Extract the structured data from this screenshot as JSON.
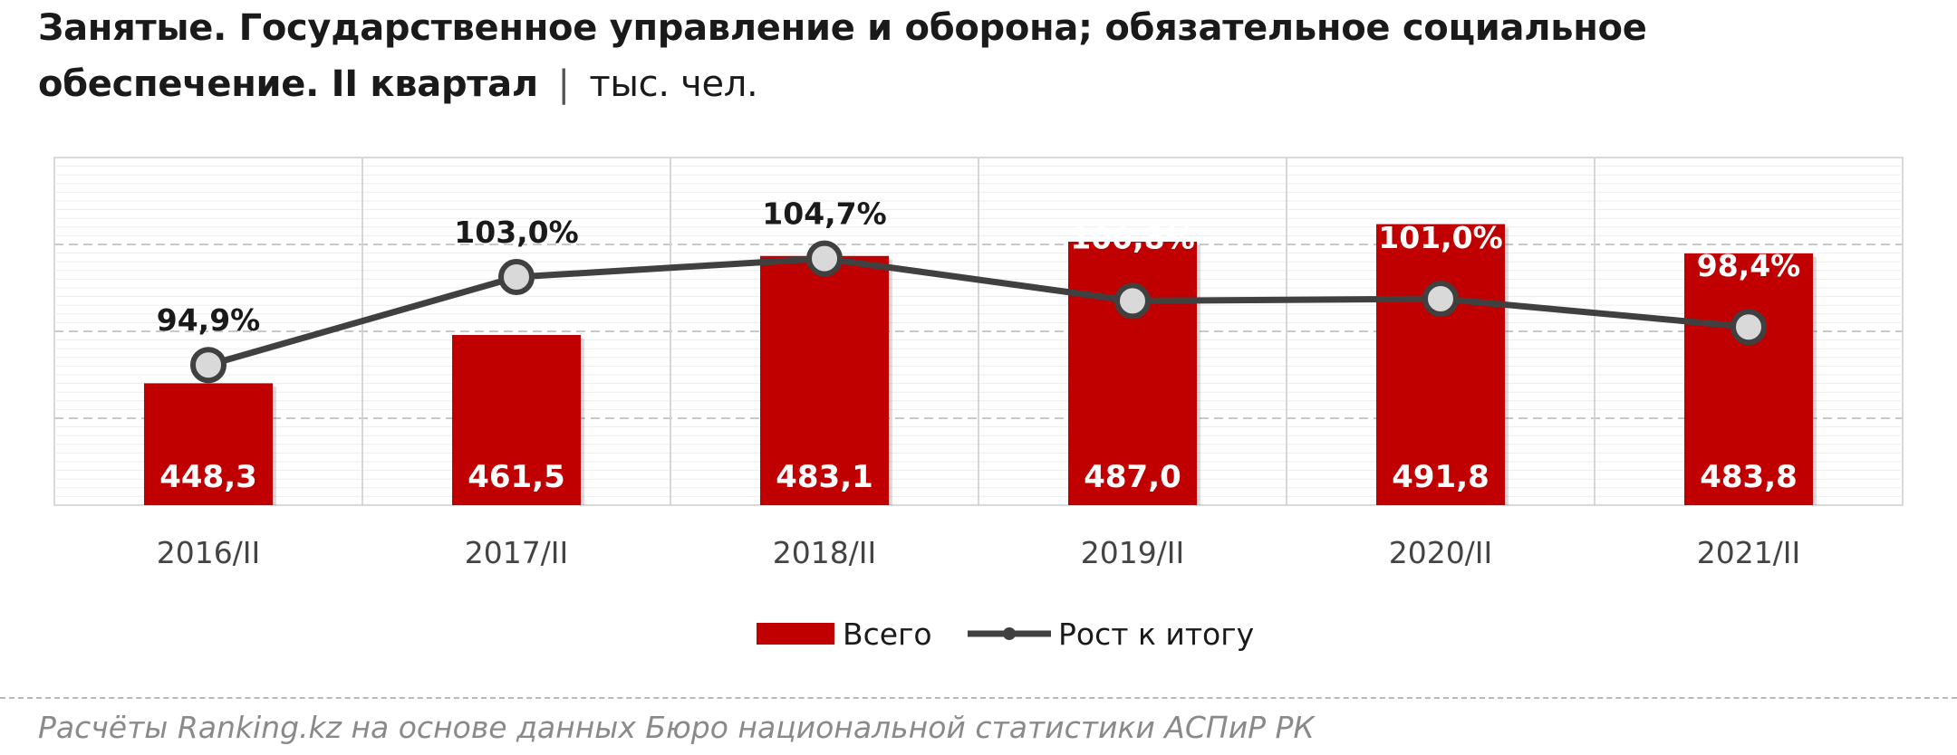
{
  "title": {
    "main": "Занятые. Государственное управление и оборона; обязательное  социальное обеспечение. II квартал",
    "separator": "|",
    "unit": "тыс. чел."
  },
  "source": "Расчёты Ranking.kz на основе данных Бюро национальной статистики АСПиР РК",
  "colors": {
    "bar": "#C00000",
    "line": "#404040",
    "marker_fill": "#d9d9d9",
    "grid": "#d9d9d9"
  },
  "chart_data": {
    "type": "bar",
    "categories": [
      "2016/II",
      "2017/II",
      "2018/II",
      "2019/II",
      "2020/II",
      "2021/II"
    ],
    "series": [
      {
        "name": "Всего",
        "type": "bar",
        "values": [
          448.3,
          461.5,
          483.1,
          487.0,
          491.8,
          483.8
        ],
        "labels": [
          "448,3",
          "461,5",
          "483,1",
          "487,0",
          "491,8",
          "483,8"
        ]
      },
      {
        "name": "Рост к итогу",
        "type": "line",
        "unit": "%",
        "values": [
          94.9,
          103.0,
          104.7,
          100.8,
          101.0,
          98.4
        ],
        "labels": [
          "94,9%",
          "103,0%",
          "104,7%",
          "100,8%",
          "101,0%",
          "98,4%"
        ]
      }
    ],
    "legend_position": "bottom",
    "grid": true
  }
}
